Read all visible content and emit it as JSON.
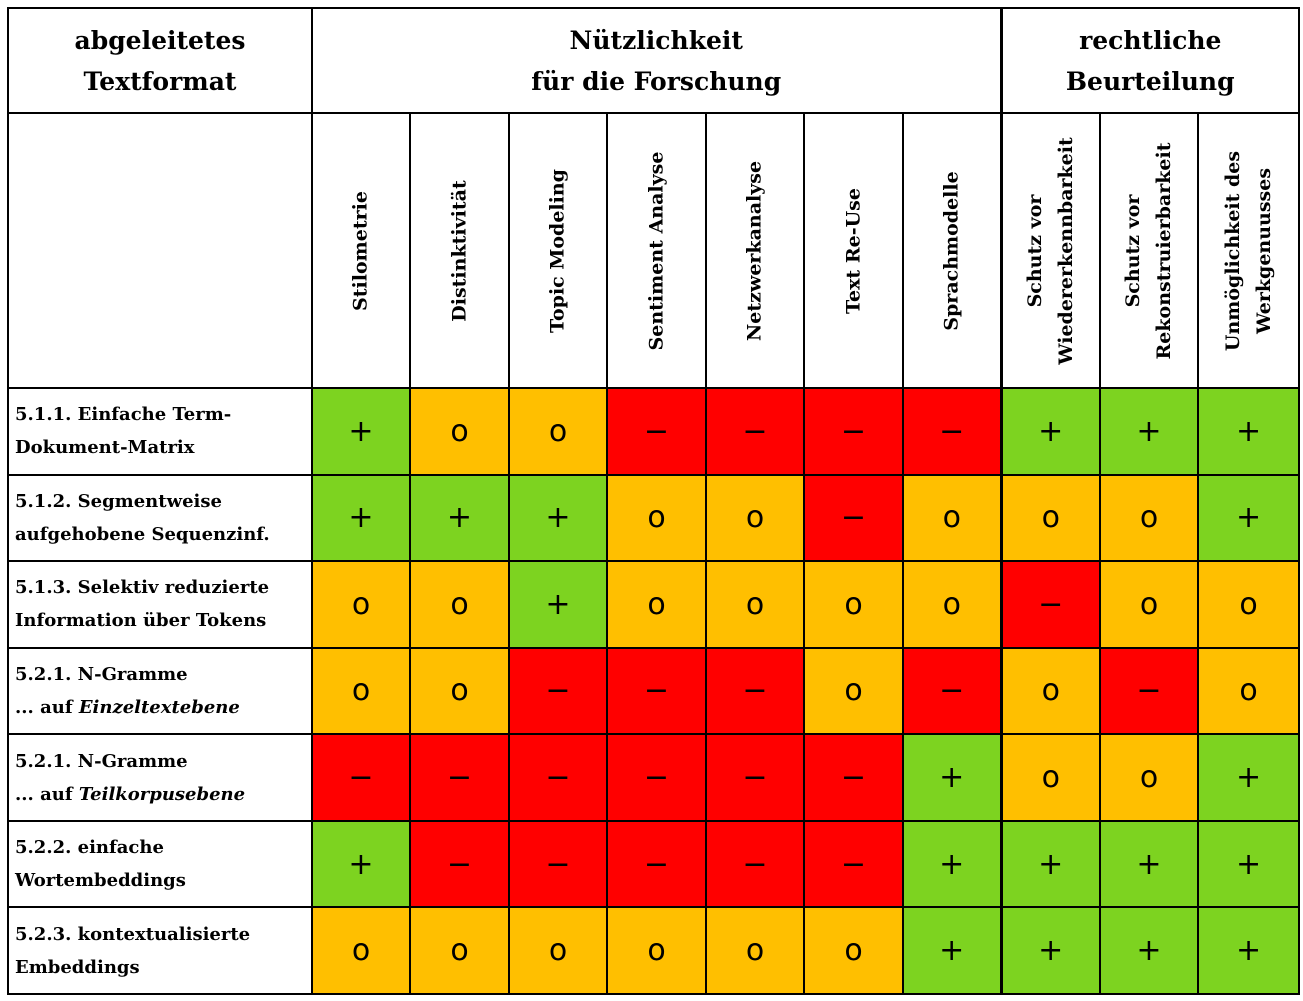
{
  "header": {
    "col1": [
      "abgeleitetes",
      "Textformat"
    ],
    "research": [
      "Nützlichkeit",
      "für die Forschung"
    ],
    "legal": [
      "rechtliche",
      "Beurteilung"
    ]
  },
  "research_columns": [
    "Stilometrie",
    "Distinktivität",
    "Topic Modeling",
    "Sentiment Analyse",
    "Netzwerkanalyse",
    "Text Re-Use",
    "Sprachmodelle"
  ],
  "legal_columns": [
    [
      "Schutz vor",
      "Wiedererkennbarkeit"
    ],
    [
      "Schutz vor",
      "Rekonstruierbarkeit"
    ],
    [
      "Unmöglichkeit des",
      "Werkgenuusses"
    ]
  ],
  "rows": [
    {
      "line1": "5.1.1. Einfache Term-",
      "line2a": "Dokument-Matrix",
      "line2b": "",
      "values": [
        "+",
        "o",
        "o",
        "−",
        "−",
        "−",
        "−",
        "+",
        "+",
        "+"
      ]
    },
    {
      "line1": "5.1.2. Segmentweise",
      "line2a": "aufgehobene Sequenzinf.",
      "line2b": "",
      "values": [
        "+",
        "+",
        "+",
        "o",
        "o",
        "−",
        "o",
        "o",
        "o",
        "+"
      ]
    },
    {
      "line1": "5.1.3. Selektiv reduzierte",
      "line2a": "Information über Tokens",
      "line2b": "",
      "values": [
        "o",
        "o",
        "+",
        "o",
        "o",
        "o",
        "o",
        "−",
        "o",
        "o"
      ]
    },
    {
      "line1": "5.2.1. N-Gramme",
      "line2a": "... auf ",
      "line2b": "Einzeltextebene",
      "values": [
        "o",
        "o",
        "−",
        "−",
        "−",
        "o",
        "−",
        "o",
        "−",
        "o"
      ]
    },
    {
      "line1": "5.2.1. N-Gramme",
      "line2a": "... auf ",
      "line2b": "Teilkorpusebene",
      "values": [
        "−",
        "−",
        "−",
        "−",
        "−",
        "−",
        "+",
        "o",
        "o",
        "+"
      ]
    },
    {
      "line1": "5.2.2. einfache",
      "line2a": "Wortembeddings",
      "line2b": "",
      "values": [
        "+",
        "−",
        "−",
        "−",
        "−",
        "−",
        "+",
        "+",
        "+",
        "+"
      ]
    },
    {
      "line1": "5.2.3. kontextualisierte",
      "line2a": "Embeddings",
      "line2b": "",
      "values": [
        "o",
        "o",
        "o",
        "o",
        "o",
        "o",
        "+",
        "+",
        "+",
        "+"
      ]
    }
  ],
  "colors": {
    "positive": "#7dd320",
    "neutral": "#ffbf00",
    "negative": "#ff0000"
  }
}
